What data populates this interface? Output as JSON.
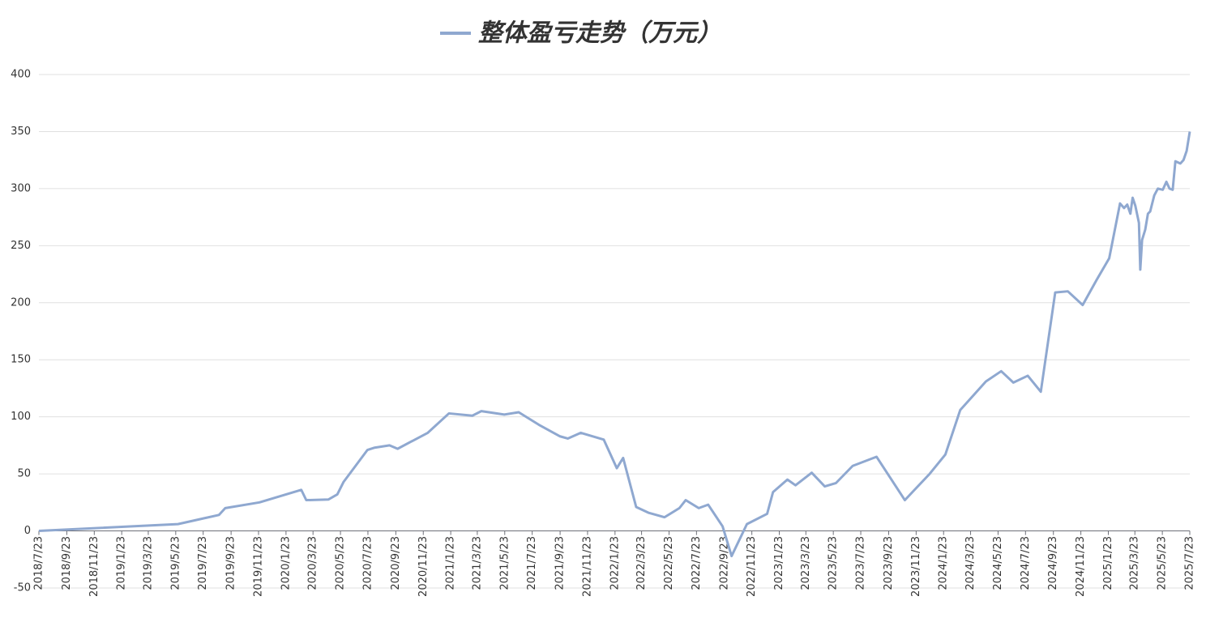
{
  "chart_data": {
    "type": "line",
    "x": [
      "2018/7/23",
      "2019/5/28",
      "2019/8/27",
      "2019/9/10",
      "2019/11/25",
      "2020/2/26",
      "2020/3/8",
      "2020/4/26",
      "2020/5/16",
      "2020/5/30",
      "2020/7/22",
      "2020/8/7",
      "2020/9/9",
      "2020/9/27",
      "2020/12/3",
      "2021/1/19",
      "2021/3/12",
      "2021/4/1",
      "2021/5/22",
      "2021/6/23",
      "2021/8/7",
      "2021/9/22",
      "2021/10/10",
      "2021/11/8",
      "2021/12/29",
      "2022/1/27",
      "2022/2/10",
      "2022/3/11",
      "2022/4/7",
      "2022/5/13",
      "2022/6/15",
      "2022/6/29",
      "2022/7/28",
      "2022/8/18",
      "2022/9/19",
      "2022/10/9",
      "2022/11/12",
      "2022/12/27",
      "2023/1/9",
      "2023/2/10",
      "2023/2/28",
      "2023/4/5",
      "2023/5/4",
      "2023/5/29",
      "2023/7/5",
      "2023/8/27",
      "2023/10/29",
      "2023/11/17",
      "2023/12/23",
      "2024/1/27",
      "2024/2/29",
      "2024/4/26",
      "2024/5/30",
      "2024/6/26",
      "2024/7/28",
      "2024/8/26",
      "2024/9/27",
      "2024/10/25",
      "2024/11/27",
      "2024/12/28",
      "2025/1/25",
      "2025/2/18",
      "2025/2/27",
      "2025/3/6",
      "2025/3/13",
      "2025/3/18",
      "2025/3/24",
      "2025/4/1",
      "2025/4/4",
      "2025/4/8",
      "2025/4/15",
      "2025/4/21",
      "2025/4/26",
      "2025/5/5",
      "2025/5/13",
      "2025/5/24",
      "2025/6/1",
      "2025/6/8",
      "2025/6/15",
      "2025/6/21",
      "2025/7/2",
      "2025/7/9",
      "2025/7/16",
      "2025/7/23"
    ],
    "series": [
      {
        "name": "整体盈亏走势（万元）",
        "color": "#8fa8d0",
        "values": [
          0,
          6,
          14,
          20,
          25,
          36,
          27,
          27.5,
          32,
          43,
          71,
          73,
          75,
          72,
          86,
          103,
          101,
          105,
          102,
          104,
          93,
          83,
          81,
          86,
          80,
          55,
          64,
          21,
          16,
          12,
          20,
          27,
          20,
          23,
          4,
          -22,
          6,
          15,
          34,
          45,
          40,
          51,
          39,
          42,
          57,
          65,
          27,
          35,
          50,
          67,
          106,
          131,
          140,
          130,
          136,
          122,
          209,
          210,
          198,
          220,
          239,
          287,
          283,
          286,
          278,
          292,
          285,
          270,
          229,
          255,
          264,
          278,
          280,
          294,
          300,
          299,
          306,
          300,
          299,
          324,
          322,
          325,
          333,
          350
        ]
      }
    ],
    "xticks": [
      "2018/7/23",
      "2018/9/23",
      "2018/11/23",
      "2019/1/23",
      "2019/3/23",
      "2019/5/23",
      "2019/7/23",
      "2019/9/23",
      "2019/11/23",
      "2020/1/23",
      "2020/3/23",
      "2020/5/23",
      "2020/7/23",
      "2020/9/23",
      "2020/11/23",
      "2021/1/23",
      "2021/3/23",
      "2021/5/23",
      "2021/7/23",
      "2021/9/23",
      "2021/11/23",
      "2022/1/23",
      "2022/3/23",
      "2022/5/23",
      "2022/7/23",
      "2022/9/23",
      "2022/11/23",
      "2023/1/23",
      "2023/3/23",
      "2023/5/23",
      "2023/7/23",
      "2023/9/23",
      "2023/11/23",
      "2024/1/23",
      "2024/3/23",
      "2024/5/23",
      "2024/7/23",
      "2024/9/23",
      "2024/11/23",
      "2025/1/23",
      "2025/3/23",
      "2025/5/23",
      "2025/7/23"
    ],
    "xlim": [
      "2018/7/23",
      "2025/7/23"
    ],
    "ylim": [
      -50,
      400
    ],
    "yticks": [
      -50,
      0,
      50,
      100,
      150,
      200,
      250,
      300,
      350,
      400
    ],
    "grid": true
  }
}
